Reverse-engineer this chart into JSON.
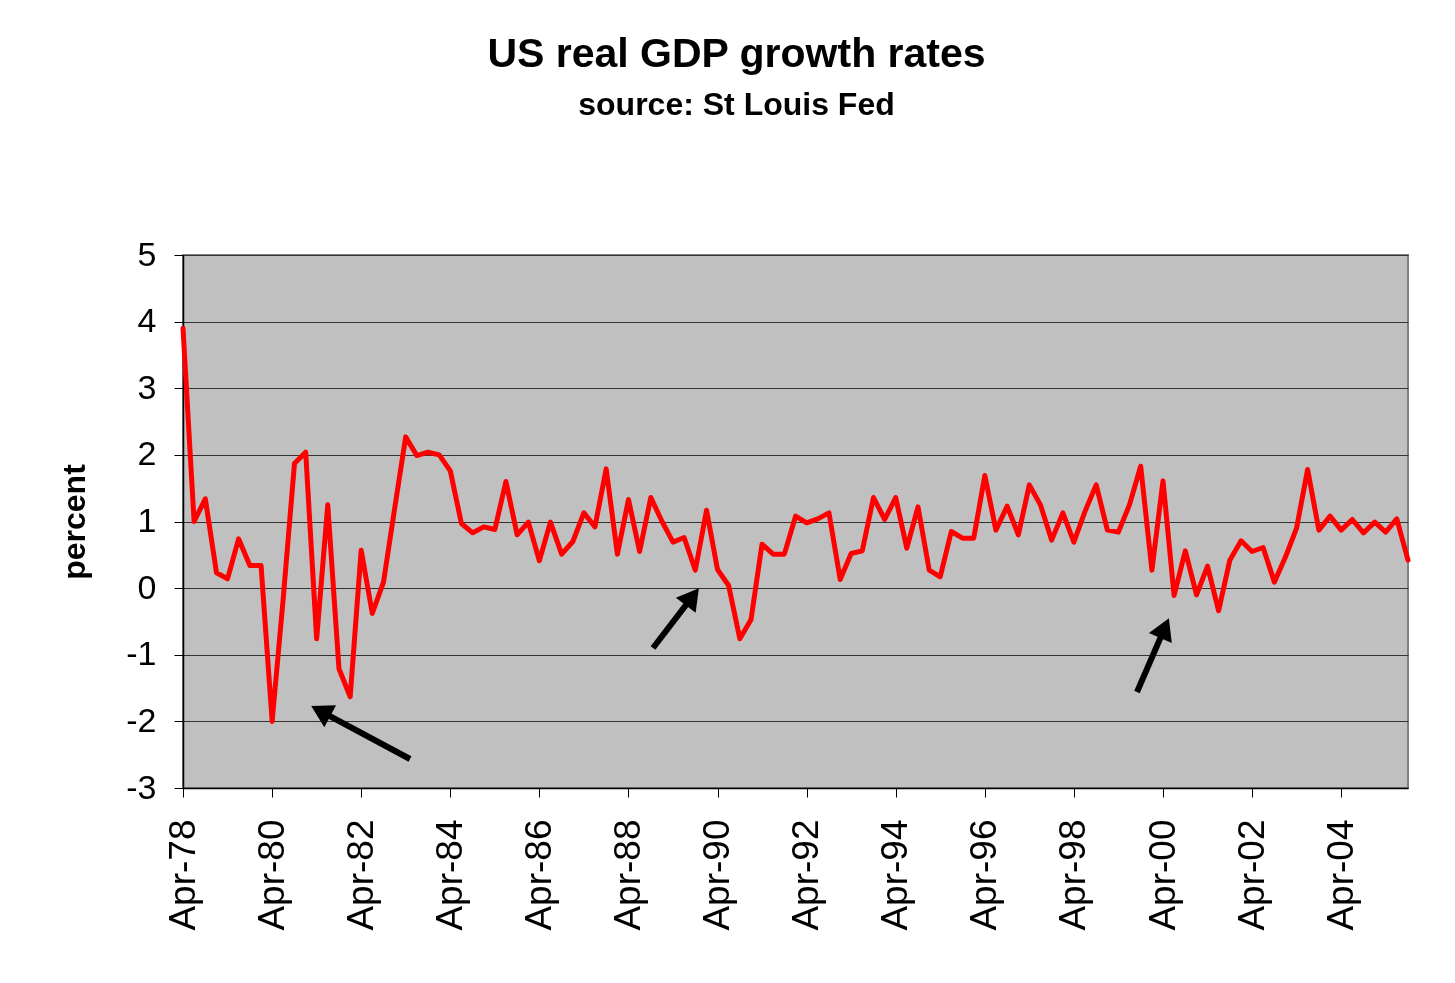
{
  "chart_data": {
    "type": "line",
    "title": "US real GDP growth rates",
    "subtitle": "source: St Louis Fed",
    "ylabel": "percent",
    "x": [
      "1978-04",
      "1978-07",
      "1978-10",
      "1979-01",
      "1979-04",
      "1979-07",
      "1979-10",
      "1980-01",
      "1980-04",
      "1980-07",
      "1980-10",
      "1981-01",
      "1981-04",
      "1981-07",
      "1981-10",
      "1982-01",
      "1982-04",
      "1982-07",
      "1982-10",
      "1983-01",
      "1983-04",
      "1983-07",
      "1983-10",
      "1984-01",
      "1984-04",
      "1984-07",
      "1984-10",
      "1985-01",
      "1985-04",
      "1985-07",
      "1985-10",
      "1986-01",
      "1986-04",
      "1986-07",
      "1986-10",
      "1987-01",
      "1987-04",
      "1987-07",
      "1987-10",
      "1988-01",
      "1988-04",
      "1988-07",
      "1988-10",
      "1989-01",
      "1989-04",
      "1989-07",
      "1989-10",
      "1990-01",
      "1990-04",
      "1990-07",
      "1990-10",
      "1991-01",
      "1991-04",
      "1991-07",
      "1991-10",
      "1992-01",
      "1992-04",
      "1992-07",
      "1992-10",
      "1993-01",
      "1993-04",
      "1993-07",
      "1993-10",
      "1994-01",
      "1994-04",
      "1994-07",
      "1994-10",
      "1995-01",
      "1995-04",
      "1995-07",
      "1995-10",
      "1996-01",
      "1996-04",
      "1996-07",
      "1996-10",
      "1997-01",
      "1997-04",
      "1997-07",
      "1997-10",
      "1998-01",
      "1998-04",
      "1998-07",
      "1998-10",
      "1999-01",
      "1999-04",
      "1999-07",
      "1999-10",
      "2000-01",
      "2000-04",
      "2000-07",
      "2000-10",
      "2001-01",
      "2001-04",
      "2001-07",
      "2001-10",
      "2002-01",
      "2002-04",
      "2002-07",
      "2002-10",
      "2003-01",
      "2003-04",
      "2003-07",
      "2003-10",
      "2004-01",
      "2004-04",
      "2004-07",
      "2004-10",
      "2005-01",
      "2005-04",
      "2005-07",
      "2005-10"
    ],
    "series": [
      {
        "color": "#ff0000",
        "values": [
          3.9,
          1.0,
          1.34,
          0.23,
          0.14,
          0.74,
          0.34,
          0.34,
          -2.0,
          -0.15,
          1.87,
          2.04,
          -0.76,
          1.25,
          -1.21,
          -1.63,
          0.57,
          -0.38,
          0.09,
          1.2,
          2.27,
          1.99,
          2.04,
          2.0,
          1.76,
          0.97,
          0.83,
          0.92,
          0.88,
          1.6,
          0.8,
          0.99,
          0.41,
          0.99,
          0.51,
          0.7,
          1.13,
          0.92,
          1.79,
          0.51,
          1.33,
          0.55,
          1.36,
          1.0,
          0.69,
          0.76,
          0.27,
          1.17,
          0.28,
          0.04,
          -0.76,
          -0.47,
          0.66,
          0.51,
          0.51,
          1.08,
          0.98,
          1.04,
          1.13,
          0.13,
          0.52,
          0.56,
          1.36,
          1.03,
          1.36,
          0.6,
          1.22,
          0.27,
          0.17,
          0.85,
          0.75,
          0.75,
          1.69,
          0.87,
          1.23,
          0.8,
          1.55,
          1.25,
          0.72,
          1.13,
          0.69,
          1.15,
          1.55,
          0.87,
          0.84,
          1.25,
          1.83,
          0.27,
          1.61,
          -0.11,
          0.56,
          -0.1,
          0.33,
          -0.34,
          0.42,
          0.71,
          0.55,
          0.61,
          0.09,
          0.47,
          0.9,
          1.78,
          0.87,
          1.08,
          0.87,
          1.03,
          0.83,
          0.99,
          0.84,
          1.04,
          0.42
        ]
      }
    ],
    "xlim": [
      "1978-04",
      "2005-10"
    ],
    "xticks": [
      {
        "value": "1978-04",
        "label": "Apr-78"
      },
      {
        "value": "1980-04",
        "label": "Apr-80"
      },
      {
        "value": "1982-04",
        "label": "Apr-82"
      },
      {
        "value": "1984-04",
        "label": "Apr-84"
      },
      {
        "value": "1986-04",
        "label": "Apr-86"
      },
      {
        "value": "1988-04",
        "label": "Apr-88"
      },
      {
        "value": "1990-04",
        "label": "Apr-90"
      },
      {
        "value": "1992-04",
        "label": "Apr-92"
      },
      {
        "value": "1994-04",
        "label": "Apr-94"
      },
      {
        "value": "1996-04",
        "label": "Apr-96"
      },
      {
        "value": "1998-04",
        "label": "Apr-98"
      },
      {
        "value": "2000-04",
        "label": "Apr-00"
      },
      {
        "value": "2002-04",
        "label": "Apr-02"
      },
      {
        "value": "2004-04",
        "label": "Apr-04"
      }
    ],
    "ylim": [
      -3,
      5
    ],
    "yticks": [
      -3,
      -2,
      -1,
      0,
      1,
      2,
      3,
      4,
      5
    ],
    "grid": "y",
    "marker": "none",
    "line_style": "solid"
  }
}
